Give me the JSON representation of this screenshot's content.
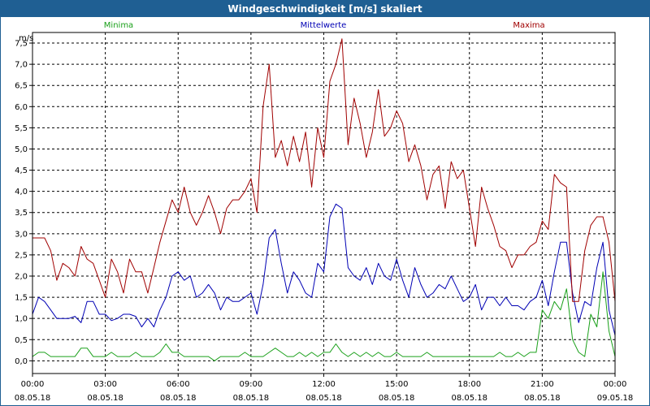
{
  "window": {
    "title": "Windgeschwindigkeit [m/s] skaliert"
  },
  "chart_data": {
    "type": "line",
    "title": "Windgeschwindigkeit [m/s] skaliert",
    "ylabel": "m/s",
    "xlabel": "",
    "ylim": [
      -0.3,
      7.75
    ],
    "yticks": [
      "0,0",
      "0,5",
      "1,0",
      "1,5",
      "2,0",
      "2,5",
      "3,0",
      "3,5",
      "4,0",
      "4,5",
      "5,0",
      "5,5",
      "6,0",
      "6,5",
      "7,0",
      "7,5"
    ],
    "xlim": [
      0,
      24
    ],
    "xticks": [
      {
        "time": "00:00",
        "date": "08.05.18"
      },
      {
        "time": "03:00",
        "date": "08.05.18"
      },
      {
        "time": "06:00",
        "date": "08.05.18"
      },
      {
        "time": "09:00",
        "date": "08.05.18"
      },
      {
        "time": "12:00",
        "date": "08.05.18"
      },
      {
        "time": "15:00",
        "date": "08.05.18"
      },
      {
        "time": "18:00",
        "date": "08.05.18"
      },
      {
        "time": "21:00",
        "date": "08.05.18"
      },
      {
        "time": "00:00",
        "date": "09.05.18"
      }
    ],
    "grid": true,
    "legend_position": "top",
    "series": [
      {
        "name": "Minima",
        "color": "#1aa01a",
        "points": [
          [
            0,
            0.1
          ],
          [
            0.25,
            0.2
          ],
          [
            0.5,
            0.2
          ],
          [
            0.75,
            0.1
          ],
          [
            1,
            0.1
          ],
          [
            1.5,
            0.1
          ],
          [
            1.75,
            0.1
          ],
          [
            2,
            0.3
          ],
          [
            2.25,
            0.3
          ],
          [
            2.5,
            0.1
          ],
          [
            3,
            0.1
          ],
          [
            3.25,
            0.2
          ],
          [
            3.5,
            0.1
          ],
          [
            3.75,
            0.1
          ],
          [
            4,
            0.1
          ],
          [
            4.25,
            0.2
          ],
          [
            4.5,
            0.1
          ],
          [
            5,
            0.1
          ],
          [
            5.25,
            0.2
          ],
          [
            5.5,
            0.4
          ],
          [
            5.75,
            0.2
          ],
          [
            6,
            0.2
          ],
          [
            6.25,
            0.1
          ],
          [
            6.5,
            0.1
          ],
          [
            7,
            0.1
          ],
          [
            7.25,
            0.1
          ],
          [
            7.5,
            0
          ],
          [
            7.75,
            0.1
          ],
          [
            8,
            0.1
          ],
          [
            8.5,
            0.1
          ],
          [
            8.75,
            0.2
          ],
          [
            9,
            0.1
          ],
          [
            9.25,
            0.1
          ],
          [
            9.5,
            0.1
          ],
          [
            9.75,
            0.2
          ],
          [
            10,
            0.3
          ],
          [
            10.25,
            0.2
          ],
          [
            10.5,
            0.1
          ],
          [
            10.75,
            0.1
          ],
          [
            11,
            0.2
          ],
          [
            11.25,
            0.1
          ],
          [
            11.5,
            0.2
          ],
          [
            11.75,
            0.1
          ],
          [
            12,
            0.2
          ],
          [
            12.25,
            0.2
          ],
          [
            12.5,
            0.4
          ],
          [
            12.75,
            0.2
          ],
          [
            13,
            0.1
          ],
          [
            13.25,
            0.2
          ],
          [
            13.5,
            0.1
          ],
          [
            13.75,
            0.2
          ],
          [
            14,
            0.1
          ],
          [
            14.25,
            0.2
          ],
          [
            14.5,
            0.1
          ],
          [
            14.75,
            0.1
          ],
          [
            15,
            0.2
          ],
          [
            15.25,
            0.1
          ],
          [
            15.5,
            0.1
          ],
          [
            16,
            0.1
          ],
          [
            16.25,
            0.2
          ],
          [
            16.5,
            0.1
          ],
          [
            17,
            0.1
          ],
          [
            17.5,
            0.1
          ],
          [
            18,
            0.1
          ],
          [
            18.5,
            0.1
          ],
          [
            19,
            0.1
          ],
          [
            19.25,
            0.2
          ],
          [
            19.5,
            0.1
          ],
          [
            19.75,
            0.1
          ],
          [
            20,
            0.2
          ],
          [
            20.25,
            0.1
          ],
          [
            20.5,
            0.2
          ],
          [
            20.75,
            0.2
          ],
          [
            21,
            1.2
          ],
          [
            21.25,
            1
          ],
          [
            21.5,
            1.4
          ],
          [
            21.75,
            1.2
          ],
          [
            22,
            1.7
          ],
          [
            22.25,
            0.5
          ],
          [
            22.5,
            0.2
          ],
          [
            22.75,
            0.1
          ],
          [
            23,
            1.1
          ],
          [
            23.25,
            0.8
          ],
          [
            23.5,
            2.1
          ],
          [
            23.75,
            0.7
          ],
          [
            24,
            0.1
          ],
          [
            24.25,
            0.1
          ],
          [
            24.5,
            0.1
          ]
        ]
      },
      {
        "name": "Mittelwerte",
        "color": "#0000b4",
        "points": [
          [
            0,
            1.1
          ],
          [
            0.25,
            1.5
          ],
          [
            0.5,
            1.4
          ],
          [
            0.75,
            1.2
          ],
          [
            1,
            1
          ],
          [
            1.25,
            1
          ],
          [
            1.5,
            1
          ],
          [
            1.75,
            1.05
          ],
          [
            2,
            0.9
          ],
          [
            2.25,
            1.4
          ],
          [
            2.5,
            1.4
          ],
          [
            2.75,
            1.1
          ],
          [
            3,
            1.1
          ],
          [
            3.25,
            0.95
          ],
          [
            3.5,
            1
          ],
          [
            3.75,
            1.1
          ],
          [
            4,
            1.1
          ],
          [
            4.25,
            1.05
          ],
          [
            4.5,
            0.8
          ],
          [
            4.75,
            1
          ],
          [
            5,
            0.8
          ],
          [
            5.25,
            1.2
          ],
          [
            5.5,
            1.5
          ],
          [
            5.75,
            2
          ],
          [
            6,
            2.1
          ],
          [
            6.25,
            1.9
          ],
          [
            6.5,
            2
          ],
          [
            6.75,
            1.5
          ],
          [
            7,
            1.6
          ],
          [
            7.25,
            1.8
          ],
          [
            7.5,
            1.6
          ],
          [
            7.75,
            1.2
          ],
          [
            8,
            1.5
          ],
          [
            8.25,
            1.4
          ],
          [
            8.5,
            1.4
          ],
          [
            8.75,
            1.5
          ],
          [
            9,
            1.6
          ],
          [
            9.25,
            1.1
          ],
          [
            9.5,
            1.8
          ],
          [
            9.75,
            2.9
          ],
          [
            10,
            3.1
          ],
          [
            10.25,
            2.3
          ],
          [
            10.5,
            1.6
          ],
          [
            10.75,
            2.1
          ],
          [
            11,
            1.9
          ],
          [
            11.25,
            1.6
          ],
          [
            11.5,
            1.5
          ],
          [
            11.75,
            2.3
          ],
          [
            12,
            2.1
          ],
          [
            12.25,
            3.4
          ],
          [
            12.5,
            3.7
          ],
          [
            12.75,
            3.6
          ],
          [
            13,
            2.2
          ],
          [
            13.25,
            2
          ],
          [
            13.5,
            1.9
          ],
          [
            13.75,
            2.2
          ],
          [
            14,
            1.8
          ],
          [
            14.25,
            2.3
          ],
          [
            14.5,
            2
          ],
          [
            14.75,
            1.9
          ],
          [
            15,
            2.4
          ],
          [
            15.25,
            1.9
          ],
          [
            15.5,
            1.5
          ],
          [
            15.75,
            2.2
          ],
          [
            16,
            1.8
          ],
          [
            16.25,
            1.5
          ],
          [
            16.5,
            1.6
          ],
          [
            16.75,
            1.8
          ],
          [
            17,
            1.7
          ],
          [
            17.25,
            2
          ],
          [
            17.5,
            1.7
          ],
          [
            17.75,
            1.4
          ],
          [
            18,
            1.5
          ],
          [
            18.25,
            1.8
          ],
          [
            18.5,
            1.2
          ],
          [
            18.75,
            1.5
          ],
          [
            19,
            1.5
          ],
          [
            19.25,
            1.3
          ],
          [
            19.5,
            1.5
          ],
          [
            19.75,
            1.3
          ],
          [
            20,
            1.3
          ],
          [
            20.25,
            1.2
          ],
          [
            20.5,
            1.4
          ],
          [
            20.75,
            1.5
          ],
          [
            21,
            1.9
          ],
          [
            21.25,
            1.3
          ],
          [
            21.5,
            2.1
          ],
          [
            21.75,
            2.8
          ],
          [
            22,
            2.8
          ],
          [
            22.25,
            1.6
          ],
          [
            22.5,
            0.9
          ],
          [
            22.75,
            1.4
          ],
          [
            23,
            1.3
          ],
          [
            23.25,
            2.2
          ],
          [
            23.5,
            2.8
          ],
          [
            23.75,
            1.2
          ],
          [
            24,
            0.6
          ],
          [
            24.25,
            0.8
          ],
          [
            24.5,
            1.2
          ]
        ]
      },
      {
        "name": "Maxima",
        "color": "#a00000",
        "points": [
          [
            0,
            2.9
          ],
          [
            0.25,
            2.9
          ],
          [
            0.5,
            2.9
          ],
          [
            0.75,
            2.6
          ],
          [
            1,
            1.9
          ],
          [
            1.25,
            2.3
          ],
          [
            1.5,
            2.2
          ],
          [
            1.75,
            2
          ],
          [
            2,
            2.7
          ],
          [
            2.25,
            2.4
          ],
          [
            2.5,
            2.3
          ],
          [
            2.75,
            1.9
          ],
          [
            3,
            1.5
          ],
          [
            3.25,
            2.4
          ],
          [
            3.5,
            2.1
          ],
          [
            3.75,
            1.6
          ],
          [
            4,
            2.4
          ],
          [
            4.25,
            2.1
          ],
          [
            4.5,
            2.1
          ],
          [
            4.75,
            1.6
          ],
          [
            5,
            2.2
          ],
          [
            5.25,
            2.8
          ],
          [
            5.5,
            3.3
          ],
          [
            5.75,
            3.8
          ],
          [
            6,
            3.5
          ],
          [
            6.25,
            4.1
          ],
          [
            6.5,
            3.5
          ],
          [
            6.75,
            3.2
          ],
          [
            7,
            3.5
          ],
          [
            7.25,
            3.9
          ],
          [
            7.5,
            3.5
          ],
          [
            7.75,
            3
          ],
          [
            8,
            3.6
          ],
          [
            8.25,
            3.8
          ],
          [
            8.5,
            3.8
          ],
          [
            8.75,
            4
          ],
          [
            9,
            4.3
          ],
          [
            9.25,
            3.5
          ],
          [
            9.5,
            6
          ],
          [
            9.75,
            7
          ],
          [
            10,
            4.8
          ],
          [
            10.25,
            5.2
          ],
          [
            10.5,
            4.6
          ],
          [
            10.75,
            5.3
          ],
          [
            11,
            4.7
          ],
          [
            11.25,
            5.4
          ],
          [
            11.5,
            4.1
          ],
          [
            11.75,
            5.5
          ],
          [
            12,
            4.8
          ],
          [
            12.25,
            6.6
          ],
          [
            12.5,
            7
          ],
          [
            12.75,
            7.6
          ],
          [
            13,
            5.1
          ],
          [
            13.25,
            6.2
          ],
          [
            13.5,
            5.6
          ],
          [
            13.75,
            4.8
          ],
          [
            14,
            5.4
          ],
          [
            14.25,
            6.4
          ],
          [
            14.5,
            5.3
          ],
          [
            14.75,
            5.5
          ],
          [
            15,
            5.9
          ],
          [
            15.25,
            5.6
          ],
          [
            15.5,
            4.7
          ],
          [
            15.75,
            5.1
          ],
          [
            16,
            4.6
          ],
          [
            16.25,
            3.8
          ],
          [
            16.5,
            4.4
          ],
          [
            16.75,
            4.6
          ],
          [
            17,
            3.6
          ],
          [
            17.25,
            4.7
          ],
          [
            17.5,
            4.3
          ],
          [
            17.75,
            4.5
          ],
          [
            18,
            3.6
          ],
          [
            18.25,
            2.7
          ],
          [
            18.5,
            4.1
          ],
          [
            18.75,
            3.6
          ],
          [
            19,
            3.2
          ],
          [
            19.25,
            2.7
          ],
          [
            19.5,
            2.6
          ],
          [
            19.75,
            2.2
          ],
          [
            20,
            2.5
          ],
          [
            20.25,
            2.5
          ],
          [
            20.5,
            2.7
          ],
          [
            20.75,
            2.8
          ],
          [
            21,
            3.3
          ],
          [
            21.25,
            3.1
          ],
          [
            21.5,
            4.4
          ],
          [
            21.75,
            4.2
          ],
          [
            22,
            4.1
          ],
          [
            22.25,
            1.4
          ],
          [
            22.5,
            1.4
          ],
          [
            22.75,
            2.6
          ],
          [
            23,
            3.2
          ],
          [
            23.25,
            3.4
          ],
          [
            23.5,
            3.4
          ],
          [
            23.75,
            2.8
          ],
          [
            24,
            1.4
          ],
          [
            24.25,
            1.9
          ],
          [
            24.5,
            2.3
          ]
        ]
      }
    ]
  }
}
